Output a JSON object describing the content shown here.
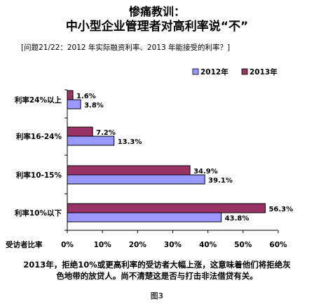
{
  "header": {
    "title_line1": "惨痛教训：",
    "title_line2": "中小型企业管理者对高利率说“不”",
    "question": "[问题21/22：2012 年实际融资利率、2013 年能接受的利率？]"
  },
  "caption": {
    "line1": "2013年，拒绝10%或更高利率的受访者大幅上涨，这意味着他们将拒绝灰",
    "line2": "色地带的放贷人。尚不清楚这是否与打击非法借贷有关。"
  },
  "figure_label": "图3",
  "chart_data": {
    "type": "bar",
    "orientation": "horizontal",
    "categories": [
      "利率24%以上",
      "利率16-24%",
      "利率10-15%",
      "利率10%以下"
    ],
    "series": [
      {
        "name": "2013年",
        "values": [
          1.6,
          7.2,
          34.9,
          56.3
        ],
        "labels": [
          "1.6%",
          "7.2%",
          "34.9%",
          "56.3%"
        ],
        "color": "#993366"
      },
      {
        "name": "2012年",
        "values": [
          3.8,
          13.3,
          39.1,
          43.8
        ],
        "labels": [
          "3.8%",
          "13.3%",
          "39.1%",
          "43.8%"
        ],
        "color": "#9999ff"
      }
    ],
    "legend_order": [
      "2012年",
      "2013年"
    ],
    "legend_position": "top-right",
    "xlabel": "受访者比率",
    "xlim": [
      0,
      60
    ],
    "xticks": [
      "0%",
      "10%",
      "20%",
      "30%",
      "40%",
      "50%",
      "60%"
    ],
    "grid": false
  }
}
